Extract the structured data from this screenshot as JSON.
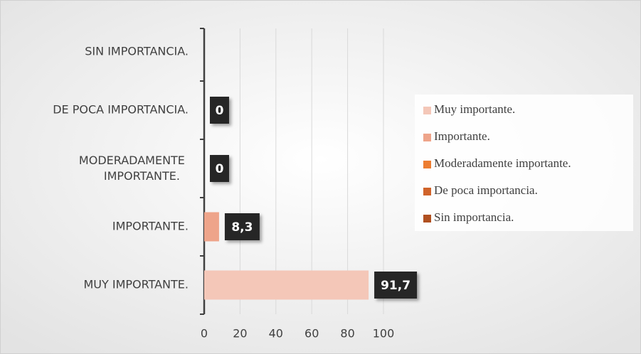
{
  "chart_data": {
    "type": "bar",
    "orientation": "horizontal",
    "categories": [
      "MUY IMPORTANTE.",
      "IMPORTANTE.",
      "MODERADAMENTE IMPORTANTE.",
      "DE POCA IMPORTANCIA.",
      "SIN IMPORTANCIA."
    ],
    "series": [
      {
        "name": "Muy importante.",
        "color": "#f4c7b8",
        "values": [
          91.7,
          null,
          null,
          null,
          null
        ],
        "value_labels": [
          "91,7",
          null,
          null,
          null,
          null
        ]
      },
      {
        "name": "Importante.",
        "color": "#eea48a",
        "values": [
          null,
          8.3,
          null,
          null,
          null
        ],
        "value_labels": [
          null,
          "8,3",
          null,
          null,
          null
        ]
      },
      {
        "name": "Moderadamente importante.",
        "color": "#ed7d31",
        "values": [
          null,
          null,
          0,
          null,
          null
        ],
        "value_labels": [
          null,
          null,
          "0",
          null,
          null
        ]
      },
      {
        "name": "De poca importancia.",
        "color": "#d0632a",
        "values": [
          null,
          null,
          null,
          0,
          null
        ],
        "value_labels": [
          null,
          null,
          null,
          "0",
          null
        ]
      },
      {
        "name": "Sin importancia.",
        "color": "#b05020",
        "values": [
          null,
          null,
          null,
          null,
          null
        ],
        "value_labels": [
          null,
          null,
          null,
          null,
          null
        ]
      }
    ],
    "xlim": [
      0,
      100
    ],
    "xticks": [
      0,
      20,
      40,
      60,
      80,
      100
    ],
    "grid": true,
    "legend": "right"
  }
}
